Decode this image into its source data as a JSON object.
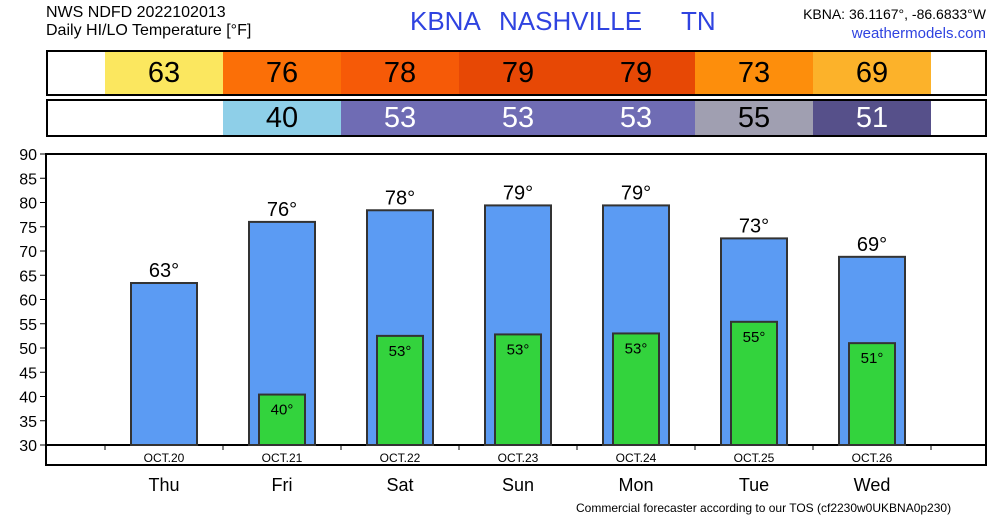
{
  "header": {
    "source_line": "NWS NDFD 2022102013",
    "product_line": "Daily HI/LO Temperature [°F]",
    "station": "KBNA",
    "city": "NASHVILLE",
    "state": "TN",
    "coords": "KBNA: 36.1167°, -86.6833°W",
    "site": "weathermodels.com"
  },
  "hi_strip": [
    {
      "label": "63",
      "color": "#fbe75f"
    },
    {
      "label": "76",
      "color": "#fb6f07"
    },
    {
      "label": "78",
      "color": "#f65a07"
    },
    {
      "label": "79",
      "color": "#e74805"
    },
    {
      "label": "79",
      "color": "#e74805"
    },
    {
      "label": "73",
      "color": "#fd8e0c"
    },
    {
      "label": "69",
      "color": "#fcb22a"
    }
  ],
  "lo_strip": [
    {
      "label": "",
      "color": "#ffffff",
      "text_color": "#000000"
    },
    {
      "label": "40",
      "color": "#8ecfe8",
      "text_color": "#000000"
    },
    {
      "label": "53",
      "color": "#6f6cb4",
      "text_color": "#ffffff"
    },
    {
      "label": "53",
      "color": "#6f6cb4",
      "text_color": "#ffffff"
    },
    {
      "label": "53",
      "color": "#6f6cb4",
      "text_color": "#ffffff"
    },
    {
      "label": "55",
      "color": "#a09fb1",
      "text_color": "#000000"
    },
    {
      "label": "51",
      "color": "#56508a",
      "text_color": "#ffffff"
    }
  ],
  "chart_data": {
    "type": "bar",
    "categories": [
      "Thu",
      "Fri",
      "Sat",
      "Sun",
      "Mon",
      "Tue",
      "Wed"
    ],
    "dates": [
      "OCT.20",
      "OCT.21",
      "OCT.22",
      "OCT.23",
      "OCT.24",
      "OCT.25",
      "OCT.26"
    ],
    "series": [
      {
        "values": [
          63.4,
          76,
          78.4,
          79.4,
          79.4,
          72.6,
          68.8
        ],
        "labels": [
          "63°",
          "76°",
          "78°",
          "79°",
          "79°",
          "73°",
          "69°"
        ],
        "color": "#5b9bf3"
      },
      {
        "values": [
          null,
          40.4,
          52.5,
          52.8,
          53,
          55.4,
          51
        ],
        "labels": [
          "",
          "40°",
          "53°",
          "53°",
          "53°",
          "55°",
          "51°"
        ],
        "color": "#33d33d"
      }
    ],
    "ylim": [
      30,
      90
    ],
    "yticks": [
      "30",
      "35",
      "40",
      "45",
      "50",
      "55",
      "60",
      "65",
      "70",
      "75",
      "80",
      "85",
      "90"
    ],
    "grid": false,
    "footer": "Commercial forecaster according to our TOS (cf2230w0UKBNA0p230)"
  }
}
